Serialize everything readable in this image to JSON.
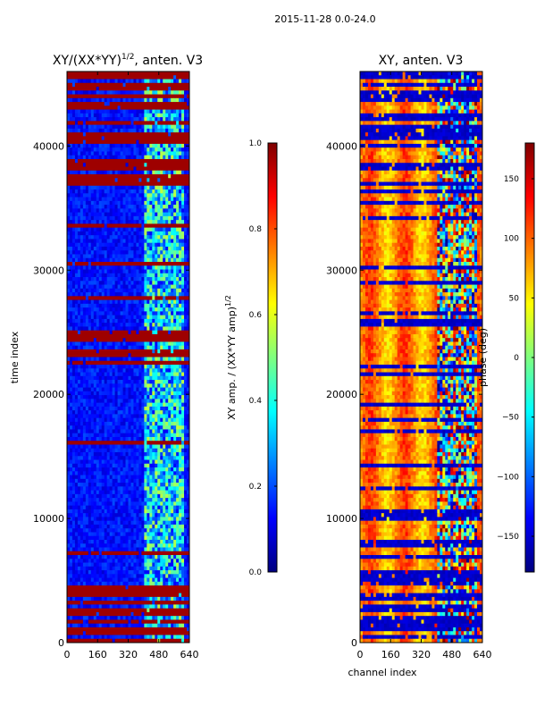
{
  "figure": {
    "suptitle": "2015-11-28 0.0-24.0"
  },
  "chart_data": [
    {
      "type": "heatmap",
      "title": "XY/(XX*YY)^1/2, anten. V3",
      "title_main": "XY/(XX*YY)",
      "title_exp": "1/2",
      "title_tail": ", anten. V3",
      "xlabel": "",
      "ylabel": "time index",
      "xlim": [
        0,
        640
      ],
      "ylim": [
        0,
        46000
      ],
      "xticks": [
        0,
        160,
        320,
        480,
        640
      ],
      "yticks": [
        0,
        10000,
        20000,
        30000,
        40000
      ],
      "colormap": "jet",
      "colorbar": {
        "label": "XY amp. / (XX*YY amp)^1/2",
        "label_main": "XY amp. / (XX*YY amp)",
        "label_exp": "1/2",
        "range": [
          0.0,
          1.0
        ],
        "ticks": [
          0.0,
          0.2,
          0.4,
          0.6,
          0.8,
          1.0
        ],
        "tick_labels": [
          "0.0",
          "0.2",
          "0.4",
          "0.6",
          "0.8",
          "1.0"
        ]
      }
    },
    {
      "type": "heatmap",
      "title": "XY, anten. V3",
      "xlabel": "channel index",
      "ylabel": "",
      "xlim": [
        0,
        640
      ],
      "ylim": [
        0,
        46000
      ],
      "xticks": [
        0,
        160,
        320,
        480,
        640
      ],
      "yticks": [
        0,
        10000,
        20000,
        30000,
        40000
      ],
      "colormap": "jet",
      "colorbar": {
        "label": "phase (deg)",
        "range": [
          -180,
          180
        ],
        "ticks": [
          -150,
          -100,
          -50,
          0,
          50,
          100,
          150
        ],
        "tick_labels": [
          "−150",
          "−100",
          "−50",
          "0",
          "50",
          "100",
          "150"
        ]
      }
    }
  ],
  "colors": {
    "jet": [
      "#00007f",
      "#0000ff",
      "#007fff",
      "#00ffff",
      "#7fff7f",
      "#ffff00",
      "#ff7f00",
      "#ff0000",
      "#7f0000"
    ],
    "background": "#ffffff",
    "axis": "#000000"
  }
}
